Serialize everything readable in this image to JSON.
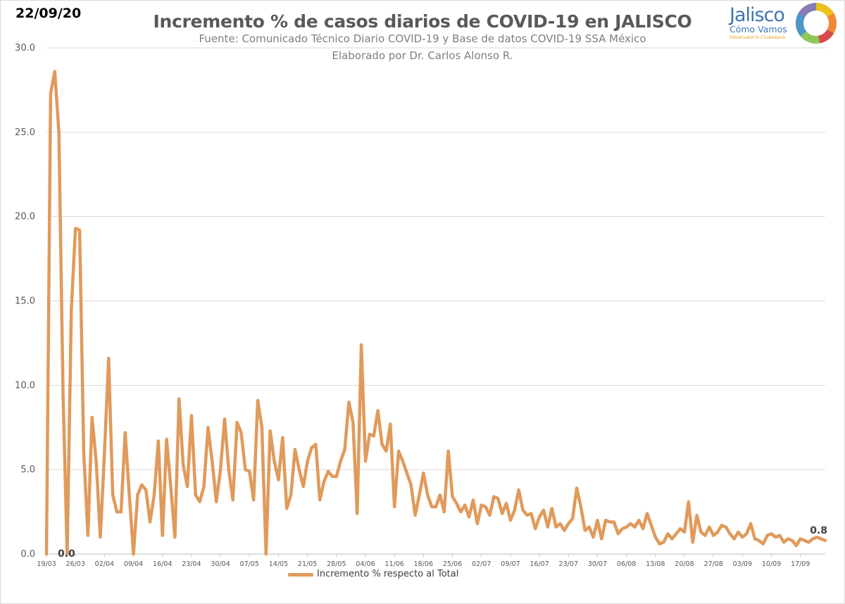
{
  "header": {
    "date": "22/09/20",
    "title": "Incremento % de casos diarios de COVID-19 en JALISCO",
    "subtitle1": "Fuente: Comunicado Técnico Diario COVID-19 y Base de datos COVID-19 SSA México",
    "subtitle2": "Elaborado por Dr. Carlos Alonso R."
  },
  "logo": {
    "name": "Jalisco",
    "subname": "Cómo Vamos",
    "tagline": "Observatorio Ciudadano"
  },
  "legend": {
    "label": "Incremento % respecto al Total",
    "color": "#e09a5b"
  },
  "chart_data": {
    "type": "line",
    "title": "Incremento % de casos diarios de COVID-19 en JALISCO",
    "xlabel": "",
    "ylabel": "",
    "ylim": [
      0,
      30
    ],
    "yticks": [
      "0.0",
      "5.0",
      "10.0",
      "15.0",
      "20.0",
      "25.0",
      "30.0"
    ],
    "xticks": [
      "19/03",
      "26/03",
      "02/04",
      "09/04",
      "16/04",
      "23/04",
      "30/04",
      "07/05",
      "14/05",
      "21/05",
      "28/05",
      "04/06",
      "11/06",
      "18/06",
      "25/06",
      "02/07",
      "09/07",
      "16/07",
      "23/07",
      "30/07",
      "06/08",
      "13/08",
      "20/08",
      "27/08",
      "03/09",
      "10/09",
      "17/09"
    ],
    "grid": true,
    "legend_position": "bottom-left",
    "series": [
      {
        "name": "Incremento % respecto al Total",
        "color": "#e09a5b",
        "values": [
          0,
          27.3,
          28.6,
          25,
          9.5,
          0,
          14.5,
          19.3,
          19.2,
          6,
          1.1,
          8.1,
          5.5,
          1,
          6,
          11.6,
          3.5,
          2.5,
          2.5,
          7.2,
          3.5,
          0,
          3.5,
          4.1,
          3.8,
          1.9,
          3.5,
          6.7,
          1.1,
          6.8,
          4,
          1,
          9.2,
          5.3,
          4,
          8.2,
          3.5,
          3.1,
          4,
          7.5,
          5.5,
          3.1,
          5,
          8,
          5,
          3.2,
          7.8,
          7.2,
          5,
          4.9,
          3.2,
          9.1,
          7.5,
          0,
          7.3,
          5.5,
          4.4,
          6.9,
          2.7,
          3.5,
          6.2,
          5,
          4,
          5.5,
          6.3,
          6.5,
          3.2,
          4.3,
          4.9,
          4.6,
          4.6,
          5.5,
          6.2,
          9,
          7.8,
          2.4,
          12.4,
          5.5,
          7.1,
          7,
          8.5,
          6.5,
          6.1,
          7.7,
          2.8,
          6.1,
          5.5,
          4.8,
          4.1,
          2.3,
          3.5,
          4.8,
          3.5,
          2.8,
          2.8,
          3.5,
          2.5,
          6.1,
          3.4,
          3,
          2.5,
          2.9,
          2.2,
          3.2,
          1.8,
          2.9,
          2.8,
          2.3,
          3.4,
          3.3,
          2.4,
          3,
          2,
          2.6,
          3.8,
          2.6,
          2.3,
          2.4,
          1.5,
          2.2,
          2.6,
          1.6,
          2.7,
          1.6,
          1.8,
          1.4,
          1.8,
          2.1,
          3.9,
          2.8,
          1.4,
          1.6,
          1,
          2,
          0.9,
          2,
          1.9,
          1.9,
          1.2,
          1.5,
          1.6,
          1.8,
          1.6,
          2,
          1.5,
          2.4,
          1.7,
          1,
          0.6,
          0.7,
          1.2,
          0.9,
          1.2,
          1.5,
          1.3,
          3.1,
          0.7,
          2.3,
          1.3,
          1.1,
          1.6,
          1.1,
          1.3,
          1.7,
          1.6,
          1.2,
          0.9,
          1.3,
          1,
          1.2,
          1.8,
          0.9,
          0.8,
          0.6,
          1.1,
          1.2,
          1,
          1.1,
          0.7,
          0.9,
          0.8,
          0.5,
          0.9,
          0.8,
          0.7,
          0.9,
          1,
          0.9,
          0.8
        ]
      }
    ],
    "annotations": [
      {
        "text": "0.0",
        "x": "24/03",
        "y": 0
      },
      {
        "text": "0.8",
        "x": "21/09",
        "y": 0.8
      }
    ]
  }
}
